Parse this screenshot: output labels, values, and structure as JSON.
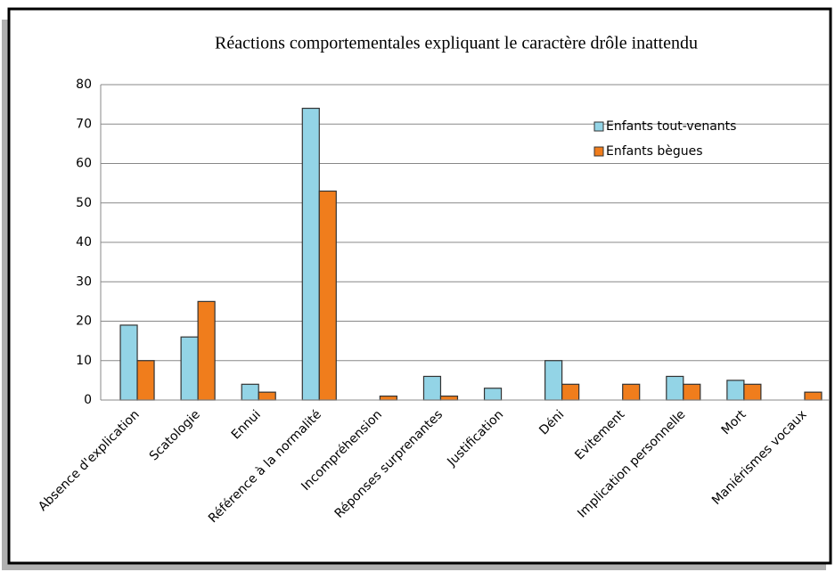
{
  "chart_data": {
    "type": "bar",
    "title": "Réactions comportementales expliquant le caractère drôle inattendu",
    "categories": [
      "Absence d'explication",
      "Scatologie",
      "Ennui",
      "Référence à la normalité",
      "Incompréhension",
      "Réponses surprenantes",
      "Justification",
      "Déni",
      "Evitement",
      "Implication personnelle",
      "Mort",
      "Maniérismes vocaux"
    ],
    "series": [
      {
        "name": "Enfants tout-venants",
        "color": "#93d4e6",
        "values": [
          19,
          16,
          4,
          74,
          0,
          6,
          3,
          10,
          0,
          6,
          5,
          0
        ]
      },
      {
        "name": "Enfants bègues",
        "color": "#f07d1c",
        "values": [
          10,
          25,
          2,
          53,
          1,
          1,
          0,
          4,
          4,
          4,
          4,
          2
        ]
      }
    ],
    "ylim": [
      0,
      80
    ],
    "yticks": [
      0,
      10,
      20,
      30,
      40,
      50,
      60,
      70,
      80
    ],
    "grid": true,
    "legend": "upper right"
  }
}
